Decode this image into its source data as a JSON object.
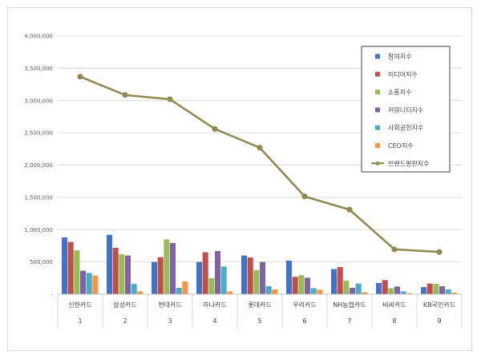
{
  "chart_data": {
    "type": "bar",
    "categories": [
      "신한카드",
      "삼성카드",
      "현대카드",
      "하나카드",
      "롯데카드",
      "우리카드",
      "NH농협카드",
      "비씨카드",
      "KB국민카드"
    ],
    "ranks": [
      "1",
      "2",
      "3",
      "4",
      "5",
      "6",
      "7",
      "8",
      "9"
    ],
    "ylim": [
      0,
      4000000
    ],
    "yticks": [
      0,
      500000,
      1000000,
      1500000,
      2000000,
      2500000,
      3000000,
      3500000,
      4000000
    ],
    "ytick_labels": [
      "-",
      "500,000",
      "1,000,000",
      "1,500,000",
      "2,000,000",
      "2,500,000",
      "3,000,000",
      "3,500,000",
      "4,000,000"
    ],
    "grid": true,
    "legend_position": "top-right",
    "series": [
      {
        "name": "참여지수",
        "kind": "bar",
        "color": "#4472C4",
        "values": [
          880000,
          920000,
          500000,
          500000,
          600000,
          520000,
          390000,
          175000,
          110000
        ]
      },
      {
        "name": "미디어지수",
        "kind": "bar",
        "color": "#C0504D",
        "values": [
          810000,
          720000,
          575000,
          650000,
          570000,
          270000,
          420000,
          220000,
          165000
        ]
      },
      {
        "name": "소통지수",
        "kind": "bar",
        "color": "#9BBB59",
        "values": [
          680000,
          620000,
          850000,
          250000,
          375000,
          295000,
          210000,
          95000,
          160000
        ]
      },
      {
        "name": "커뮤니티지수",
        "kind": "bar",
        "color": "#8064A2",
        "values": [
          365000,
          600000,
          795000,
          670000,
          500000,
          255000,
          100000,
          120000,
          125000
        ]
      },
      {
        "name": "사회공헌지수",
        "kind": "bar",
        "color": "#4BACC6",
        "values": [
          330000,
          160000,
          100000,
          430000,
          125000,
          95000,
          165000,
          45000,
          75000
        ]
      },
      {
        "name": "CEO지수",
        "kind": "bar",
        "color": "#F79646",
        "values": [
          290000,
          45000,
          200000,
          45000,
          75000,
          70000,
          30000,
          15000,
          25000
        ]
      },
      {
        "name": "브랜드평판지수",
        "kind": "line",
        "color": "#938953",
        "values": [
          3370000,
          3085000,
          3020000,
          2560000,
          2270000,
          1515000,
          1310000,
          695000,
          655000
        ]
      }
    ]
  }
}
